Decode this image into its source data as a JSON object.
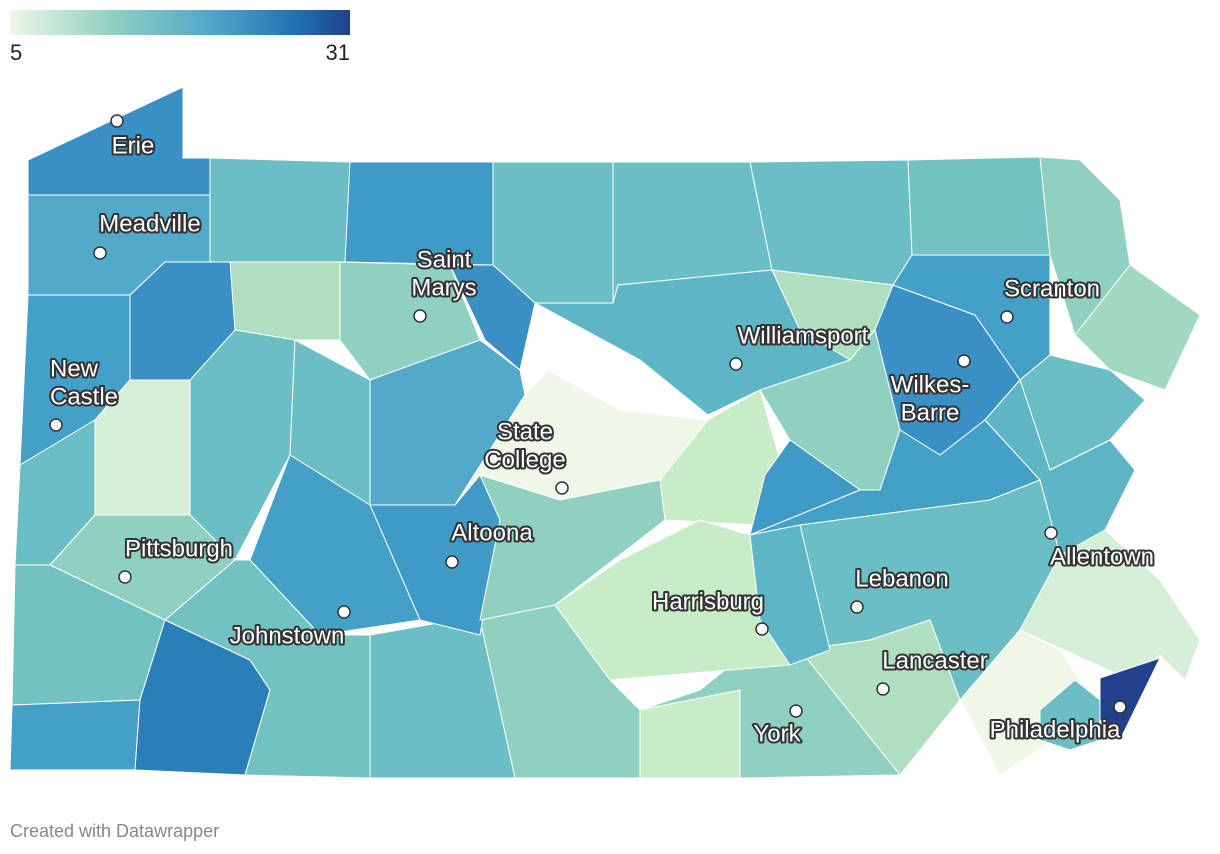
{
  "legend": {
    "min": 5,
    "max": 31
  },
  "cities": [
    {
      "lines": [
        "Erie"
      ]
    },
    {
      "lines": [
        "Meadville"
      ]
    },
    {
      "lines": [
        "Saint",
        "Marys"
      ]
    },
    {
      "lines": [
        "New",
        "Castle"
      ]
    },
    {
      "lines": [
        "State",
        "College"
      ]
    },
    {
      "lines": [
        "Williamsport"
      ]
    },
    {
      "lines": [
        "Scranton"
      ]
    },
    {
      "lines": [
        "Wilkes-",
        "Barre"
      ]
    },
    {
      "lines": [
        "Allentown"
      ]
    },
    {
      "lines": [
        "Pittsburgh"
      ]
    },
    {
      "lines": [
        "Altoona"
      ]
    },
    {
      "lines": [
        "Johnstown"
      ]
    },
    {
      "lines": [
        "Harrisburg"
      ]
    },
    {
      "lines": [
        "Lebanon"
      ]
    },
    {
      "lines": [
        "Lancaster"
      ]
    },
    {
      "lines": [
        "York"
      ]
    },
    {
      "lines": [
        "Philadelphia"
      ]
    }
  ],
  "footer": "Created with Datawrapper"
}
